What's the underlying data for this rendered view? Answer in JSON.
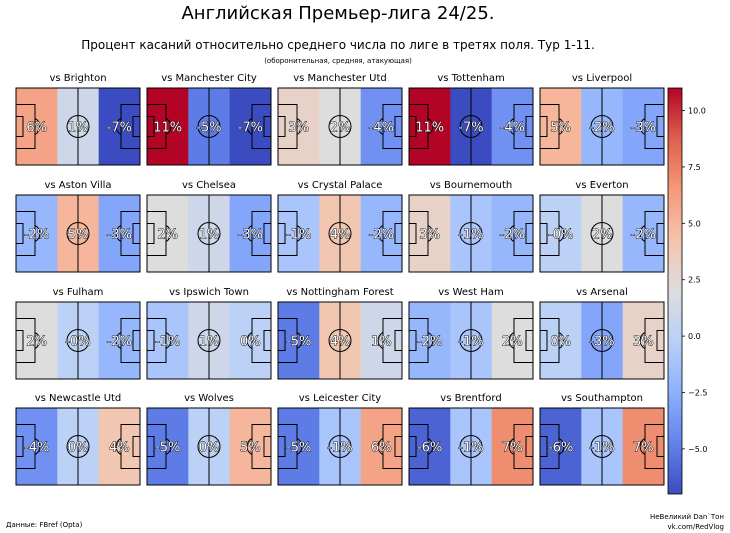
{
  "header": {
    "title": "Английская Премьер-лига 24/25.",
    "subtitle": "Процент касаний относительно среднего числа по лиге в третях поля. Тур 1-11.",
    "note": "(оборонительная, средняя, атакующая)"
  },
  "footer": {
    "source": "Данные: FBref (Opta)",
    "credit_line1": "НеВеликий Dan`Тон",
    "credit_line2": "vk.com/RedVlog"
  },
  "chart_data": {
    "type": "heatmap",
    "title": "Английская Премьер-лига 24/25.",
    "value_unit": "%",
    "thirds": [
      "оборонительная",
      "средняя",
      "атакующая"
    ],
    "colorbar": {
      "colormap": "coolwarm",
      "range": [
        -7,
        11
      ],
      "ticks": [
        -5.0,
        -2.5,
        0.0,
        2.5,
        5.0,
        7.5,
        10.0
      ],
      "tick_labels": [
        "−5.0",
        "−2.5",
        "0.0",
        "2.5",
        "5.0",
        "7.5",
        "10.0"
      ]
    },
    "panels": [
      {
        "title": "vs Brighton",
        "values": [
          6,
          1,
          -7
        ],
        "labels": [
          "6%",
          "1%",
          "-7%"
        ]
      },
      {
        "title": "vs Manchester City",
        "values": [
          11,
          -5,
          -7
        ],
        "labels": [
          "11%",
          "-5%",
          "-7%"
        ]
      },
      {
        "title": "vs Manchester Utd",
        "values": [
          3,
          2,
          -4
        ],
        "labels": [
          "3%",
          "2%",
          "-4%"
        ]
      },
      {
        "title": "vs Tottenham",
        "values": [
          11,
          -7,
          -4
        ],
        "labels": [
          "11%",
          "-7%",
          "-4%"
        ]
      },
      {
        "title": "vs Liverpool",
        "values": [
          5,
          -2,
          -3
        ],
        "labels": [
          "5%",
          "-2%",
          "-3%"
        ]
      },
      {
        "title": "vs Aston Villa",
        "values": [
          -2,
          5,
          -3
        ],
        "labels": [
          "-2%",
          "5%",
          "-3%"
        ]
      },
      {
        "title": "vs Chelsea",
        "values": [
          2,
          1,
          -3
        ],
        "labels": [
          "2%",
          "1%",
          "-3%"
        ]
      },
      {
        "title": "vs Crystal Palace",
        "values": [
          -1,
          4,
          -2
        ],
        "labels": [
          "-1%",
          "4%",
          "-2%"
        ]
      },
      {
        "title": "vs Bournemouth",
        "values": [
          3,
          -1,
          -2
        ],
        "labels": [
          "3%",
          "-1%",
          "-2%"
        ]
      },
      {
        "title": "vs Everton",
        "values": [
          0,
          2,
          -2
        ],
        "labels": [
          "-0%",
          "2%",
          "-2%"
        ]
      },
      {
        "title": "vs Fulham",
        "values": [
          2,
          0,
          -2
        ],
        "labels": [
          "2%",
          "-0%",
          "-2%"
        ]
      },
      {
        "title": "vs Ipswich Town",
        "values": [
          -1,
          1,
          0
        ],
        "labels": [
          "-1%",
          "1%",
          "0%"
        ]
      },
      {
        "title": "vs Nottingham Forest",
        "values": [
          -5,
          4,
          1
        ],
        "labels": [
          "-5%",
          "4%",
          "1%"
        ]
      },
      {
        "title": "vs West Ham",
        "values": [
          -2,
          -1,
          2
        ],
        "labels": [
          "-2%",
          "-1%",
          "2%"
        ]
      },
      {
        "title": "vs Arsenal",
        "values": [
          0,
          -3,
          3
        ],
        "labels": [
          "0%",
          "-3%",
          "3%"
        ]
      },
      {
        "title": "vs Newcastle Utd",
        "values": [
          -4,
          0,
          4
        ],
        "labels": [
          "-4%",
          "0%",
          "4%"
        ]
      },
      {
        "title": "vs Wolves",
        "values": [
          -5,
          0,
          5
        ],
        "labels": [
          "-5%",
          "0%",
          "5%"
        ]
      },
      {
        "title": "vs Leicester City",
        "values": [
          -5,
          -1,
          6
        ],
        "labels": [
          "-5%",
          "-1%",
          "6%"
        ]
      },
      {
        "title": "vs Brentford",
        "values": [
          -6,
          -1,
          7
        ],
        "labels": [
          "-6%",
          "-1%",
          "7%"
        ]
      },
      {
        "title": "vs Southampton",
        "values": [
          -6,
          -1,
          7
        ],
        "labels": [
          "-6%",
          "-1%",
          "7%"
        ]
      }
    ]
  }
}
